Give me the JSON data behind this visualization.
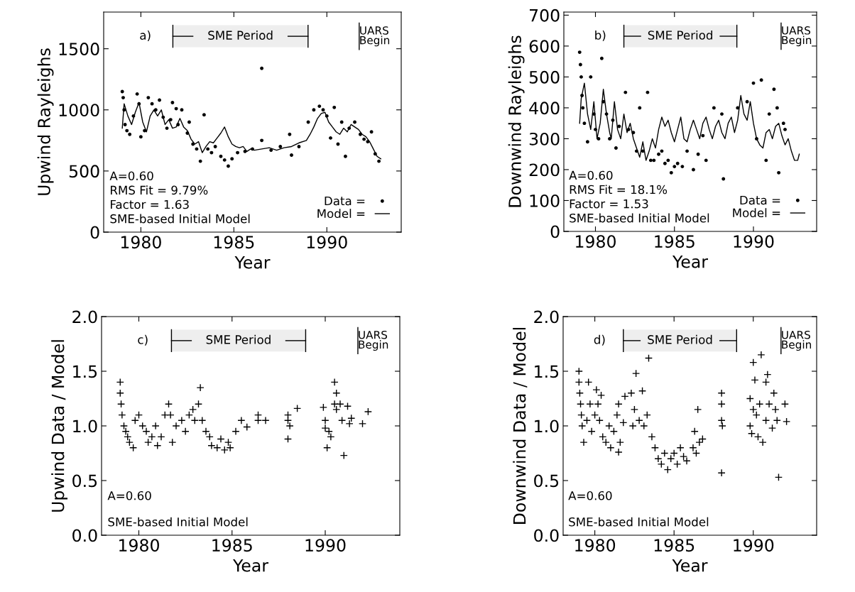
{
  "chart_data": [
    {
      "type": "line",
      "xlabel": "Year",
      "ylabel": "Upwind Rayleighs",
      "xlim": [
        1978,
        1994
      ],
      "ylim": [
        0,
        1800
      ],
      "xticks": [
        1980,
        1985,
        1990
      ],
      "yticks": [
        0,
        500,
        1000,
        1500
      ],
      "grid": false,
      "legend": "bottom right",
      "annotations": [
        "a)",
        "A=0.60",
        "RMS Fit = 9.79%",
        "Factor = 1.63",
        "SME-based Initial Model"
      ],
      "bands": [
        {
          "axis": "x",
          "from": 1981.72,
          "to": 1988.99,
          "label": "SME Period"
        }
      ],
      "ref_lines": [
        {
          "axis": "x",
          "value": 1991.74,
          "label": "UARS\nBegin"
        }
      ],
      "series": [
        {
          "name": "Data =",
          "type": "scatter",
          "marker": "circle",
          "color": "#000000",
          "x": [
            1979.0,
            1979.05,
            1979.1,
            1979.15,
            1979.25,
            1979.4,
            1979.6,
            1979.8,
            1979.9,
            1980.0,
            1980.2,
            1980.4,
            1980.6,
            1980.8,
            1981.0,
            1981.2,
            1981.4,
            1981.6,
            1981.7,
            1981.9,
            1982.0,
            1982.2,
            1982.5,
            1982.6,
            1982.8,
            1983.0,
            1983.2,
            1983.4,
            1983.6,
            1983.8,
            1984.0,
            1984.3,
            1984.5,
            1984.7,
            1984.9,
            1985.2,
            1985.6,
            1986.0,
            1986.5,
            1986.5,
            1987.0,
            1987.5,
            1988.0,
            1988.1,
            1988.5,
            1989.0,
            1989.3,
            1989.6,
            1989.8,
            1990.0,
            1990.2,
            1990.4,
            1990.6,
            1990.8,
            1991.0,
            1991.2,
            1991.5,
            1991.8,
            1992.0,
            1992.2,
            1992.4,
            1992.6,
            1992.8
          ],
          "values": [
            1150,
            1100,
            1000,
            880,
            830,
            800,
            950,
            1130,
            1050,
            780,
            830,
            1100,
            1050,
            1000,
            1080,
            940,
            850,
            920,
            1060,
            1010,
            880,
            1000,
            810,
            900,
            720,
            680,
            580,
            960,
            680,
            650,
            700,
            620,
            590,
            540,
            600,
            650,
            660,
            680,
            750,
            1340,
            670,
            700,
            800,
            630,
            700,
            900,
            1000,
            1030,
            1000,
            950,
            770,
            1020,
            720,
            900,
            620,
            850,
            900,
            800,
            760,
            740,
            820,
            640,
            580
          ]
        },
        {
          "name": "Model =",
          "type": "line",
          "line_style": "solid",
          "marker": "none",
          "color": "#000000",
          "x": [
            1979.0,
            1979.1,
            1979.3,
            1979.5,
            1979.7,
            1979.9,
            1980.1,
            1980.3,
            1980.5,
            1980.7,
            1980.9,
            1981.1,
            1981.3,
            1981.5,
            1981.7,
            1981.9,
            1982.1,
            1982.3,
            1982.5,
            1982.7,
            1982.9,
            1983.1,
            1983.3,
            1983.5,
            1983.7,
            1983.9,
            1984.1,
            1984.3,
            1984.5,
            1984.7,
            1984.9,
            1985.1,
            1985.3,
            1985.5,
            1985.7,
            1985.9,
            1986.1,
            1986.5,
            1986.9,
            1987.3,
            1987.7,
            1988.1,
            1988.5,
            1988.9,
            1989.1,
            1989.3,
            1989.5,
            1989.7,
            1989.9,
            1990.1,
            1990.3,
            1990.5,
            1990.7,
            1990.9,
            1991.1,
            1991.3,
            1991.5,
            1991.7,
            1991.9,
            1992.1,
            1992.3,
            1992.5,
            1992.7,
            1992.9
          ],
          "values": [
            850,
            1050,
            950,
            880,
            980,
            1060,
            900,
            820,
            950,
            1000,
            950,
            1000,
            880,
            920,
            850,
            860,
            930,
            860,
            830,
            760,
            720,
            740,
            650,
            700,
            740,
            730,
            770,
            810,
            860,
            780,
            720,
            700,
            690,
            700,
            660,
            680,
            670,
            680,
            690,
            670,
            690,
            700,
            730,
            750,
            800,
            860,
            930,
            970,
            980,
            900,
            860,
            820,
            800,
            850,
            820,
            880,
            860,
            840,
            800,
            780,
            740,
            680,
            620,
            600
          ]
        }
      ]
    },
    {
      "type": "line",
      "xlabel": "Year",
      "ylabel": "Downwind Rayleighs",
      "xlim": [
        1978,
        1994
      ],
      "ylim": [
        0,
        710
      ],
      "xticks": [
        1980,
        1985,
        1990
      ],
      "yticks": [
        0,
        100,
        200,
        300,
        400,
        500,
        600,
        700
      ],
      "grid": false,
      "legend": "bottom right",
      "annotations": [
        "b)",
        "A=0.60",
        "RMS Fit = 18.1%",
        "Factor = 1.53",
        "SME-based Initial Model"
      ],
      "bands": [
        {
          "axis": "x",
          "from": 1981.8,
          "to": 1988.95,
          "label": "SME Period"
        }
      ],
      "ref_lines": [
        {
          "axis": "x",
          "value": 1991.75,
          "label": "UARS\nBegin"
        }
      ],
      "series": [
        {
          "name": "Data =",
          "type": "scatter",
          "marker": "circle",
          "color": "#000000",
          "x": [
            1979.0,
            1979.05,
            1979.1,
            1979.15,
            1979.2,
            1979.3,
            1979.5,
            1979.7,
            1979.9,
            1980.0,
            1980.2,
            1980.4,
            1980.5,
            1980.7,
            1980.9,
            1981.1,
            1981.3,
            1981.5,
            1981.9,
            1982.1,
            1982.4,
            1982.6,
            1982.8,
            1983.0,
            1983.3,
            1983.5,
            1983.7,
            1984.0,
            1984.2,
            1984.4,
            1984.6,
            1984.8,
            1985.0,
            1985.2,
            1985.5,
            1985.8,
            1986.2,
            1986.5,
            1986.8,
            1987.0,
            1987.5,
            1988.0,
            1988.1,
            1989.0,
            1989.6,
            1990.0,
            1990.2,
            1990.5,
            1990.8,
            1991.0,
            1991.3,
            1991.5,
            1991.6,
            1991.9,
            1992.0
          ],
          "values": [
            580,
            540,
            500,
            440,
            400,
            350,
            290,
            500,
            380,
            330,
            300,
            560,
            420,
            380,
            300,
            360,
            270,
            340,
            450,
            330,
            320,
            260,
            400,
            260,
            450,
            230,
            230,
            250,
            260,
            220,
            230,
            190,
            210,
            220,
            210,
            260,
            200,
            250,
            310,
            230,
            400,
            380,
            170,
            400,
            420,
            480,
            300,
            490,
            230,
            380,
            460,
            400,
            190,
            350,
            330
          ]
        },
        {
          "name": "Model =",
          "type": "line",
          "line_style": "solid",
          "marker": "none",
          "color": "#000000",
          "x": [
            1979.0,
            1979.1,
            1979.3,
            1979.5,
            1979.7,
            1979.9,
            1980.1,
            1980.3,
            1980.5,
            1980.7,
            1980.9,
            1981.0,
            1981.2,
            1981.4,
            1981.6,
            1981.8,
            1982.0,
            1982.2,
            1982.4,
            1982.6,
            1982.8,
            1983.0,
            1983.2,
            1983.4,
            1983.6,
            1983.8,
            1984.0,
            1984.2,
            1984.4,
            1984.6,
            1984.8,
            1985.0,
            1985.2,
            1985.4,
            1985.6,
            1985.8,
            1986.0,
            1986.2,
            1986.4,
            1986.6,
            1986.8,
            1987.0,
            1987.2,
            1987.4,
            1987.6,
            1987.8,
            1988.0,
            1988.2,
            1988.4,
            1988.6,
            1988.8,
            1989.0,
            1989.2,
            1989.4,
            1989.6,
            1989.8,
            1990.0,
            1990.2,
            1990.4,
            1990.6,
            1990.8,
            1991.0,
            1991.2,
            1991.4,
            1991.6,
            1991.8,
            1992.0,
            1992.2,
            1992.4,
            1992.6,
            1992.8,
            1992.9
          ],
          "values": [
            350,
            430,
            480,
            380,
            330,
            420,
            300,
            350,
            460,
            380,
            320,
            300,
            420,
            330,
            300,
            380,
            320,
            350,
            300,
            270,
            240,
            290,
            230,
            260,
            300,
            270,
            330,
            370,
            340,
            360,
            320,
            290,
            330,
            370,
            300,
            290,
            330,
            360,
            330,
            300,
            350,
            370,
            330,
            300,
            340,
            360,
            320,
            300,
            350,
            370,
            320,
            360,
            440,
            380,
            360,
            420,
            350,
            300,
            280,
            270,
            320,
            330,
            300,
            340,
            350,
            310,
            280,
            300,
            260,
            230,
            230,
            250
          ]
        }
      ]
    },
    {
      "type": "scatter",
      "marker": "cross",
      "xlabel": "Year",
      "ylabel": "Upwind Data / Model",
      "xlim": [
        1978,
        1994
      ],
      "ylim": [
        0,
        2
      ],
      "xticks": [
        1980,
        1985,
        1990
      ],
      "yticks": [
        {
          "value": 0,
          "label": "0.0"
        },
        {
          "value": 0.5,
          "label": "0.5"
        },
        {
          "value": 1,
          "label": "1.0"
        },
        {
          "value": 1.5,
          "label": "1.5"
        },
        {
          "value": 2,
          "label": "2.0"
        }
      ],
      "grid": false,
      "annotations": [
        "c)",
        "A=0.60",
        "SME-based Initial Model"
      ],
      "bands": [
        {
          "axis": "x",
          "from": 1981.75,
          "to": 1988.95,
          "label": "SME Period"
        }
      ],
      "ref_lines": [
        {
          "axis": "x",
          "value": 1991.75,
          "label": "UARS\nBegin"
        }
      ],
      "series": [
        {
          "color": "#000000",
          "x": [
            1979.0,
            1979.0,
            1979.05,
            1979.1,
            1979.2,
            1979.3,
            1979.4,
            1979.5,
            1979.7,
            1979.8,
            1980.0,
            1980.2,
            1980.4,
            1980.5,
            1980.7,
            1980.9,
            1981.0,
            1981.2,
            1981.4,
            1981.6,
            1981.7,
            1981.8,
            1982.0,
            1982.3,
            1982.5,
            1982.7,
            1982.9,
            1983.0,
            1983.2,
            1983.3,
            1983.4,
            1983.6,
            1983.8,
            1983.9,
            1984.2,
            1984.4,
            1984.6,
            1984.8,
            1984.9,
            1985.2,
            1985.5,
            1985.8,
            1986.4,
            1986.4,
            1986.8,
            1988.0,
            1988.0,
            1988.0,
            1988.1,
            1988.5,
            1989.9,
            1990.0,
            1990.0,
            1990.1,
            1990.2,
            1990.3,
            1990.5,
            1990.5,
            1990.6,
            1990.6,
            1990.8,
            1990.9,
            1991.0,
            1991.2,
            1991.3,
            1991.4,
            1992.0,
            1992.3
          ],
          "values": [
            1.4,
            1.3,
            1.2,
            1.1,
            1.0,
            0.95,
            0.9,
            0.85,
            0.8,
            1.05,
            1.1,
            1.0,
            0.95,
            0.85,
            0.9,
            1.0,
            0.82,
            0.9,
            1.1,
            1.2,
            1.1,
            0.85,
            1.0,
            1.05,
            0.95,
            1.1,
            1.15,
            1.05,
            1.2,
            1.35,
            1.05,
            0.95,
            0.9,
            0.82,
            0.8,
            0.88,
            0.78,
            0.85,
            0.8,
            0.95,
            1.05,
            0.99,
            1.05,
            1.1,
            1.05,
            1.1,
            1.05,
            0.88,
            1.0,
            1.16,
            1.17,
            1.05,
            0.98,
            0.8,
            0.95,
            0.9,
            1.2,
            1.4,
            1.3,
            1.15,
            1.2,
            1.05,
            0.73,
            1.18,
            1.02,
            1.07,
            1.02,
            1.13
          ]
        }
      ]
    },
    {
      "type": "scatter",
      "marker": "cross",
      "xlabel": "Year",
      "ylabel": "Downwind Data / Model",
      "xlim": [
        1978,
        1994
      ],
      "ylim": [
        0,
        2
      ],
      "xticks": [
        1980,
        1985,
        1990
      ],
      "yticks": [
        {
          "value": 0,
          "label": "0.0"
        },
        {
          "value": 0.5,
          "label": "0.5"
        },
        {
          "value": 1,
          "label": "1.0"
        },
        {
          "value": 1.5,
          "label": "1.5"
        },
        {
          "value": 2,
          "label": "2.0"
        }
      ],
      "grid": false,
      "annotations": [
        "d)",
        "A=0.60",
        "SME-based Initial Model"
      ],
      "bands": [
        {
          "axis": "x",
          "from": 1981.8,
          "to": 1988.95,
          "label": "SME Period"
        }
      ],
      "ref_lines": [
        {
          "axis": "x",
          "value": 1991.75,
          "label": "UARS\nBegin"
        }
      ],
      "series": [
        {
          "color": "#000000",
          "x": [
            1979.0,
            1979.0,
            1979.05,
            1979.1,
            1979.15,
            1979.2,
            1979.3,
            1979.5,
            1979.6,
            1979.7,
            1979.8,
            1980.0,
            1980.1,
            1980.2,
            1980.3,
            1980.4,
            1980.5,
            1980.7,
            1980.9,
            1981.0,
            1981.2,
            1981.4,
            1981.5,
            1981.5,
            1981.6,
            1981.8,
            1981.9,
            1982.3,
            1982.4,
            1982.5,
            1982.6,
            1982.8,
            1983.0,
            1983.1,
            1983.3,
            1983.4,
            1983.6,
            1983.8,
            1984.0,
            1984.2,
            1984.4,
            1984.6,
            1984.8,
            1985.0,
            1985.2,
            1985.4,
            1985.6,
            1985.8,
            1986.2,
            1986.3,
            1986.4,
            1986.5,
            1986.6,
            1986.8,
            1988.0,
            1988.0,
            1988.0,
            1988.05,
            1988.0,
            1989.8,
            1989.8,
            1989.9,
            1990.0,
            1990.0,
            1990.1,
            1990.2,
            1990.3,
            1990.4,
            1990.5,
            1990.6,
            1990.8,
            1990.8,
            1990.9,
            1991.0,
            1991.2,
            1991.3,
            1991.4,
            1991.5,
            1991.6,
            1992.0,
            1992.1
          ],
          "values": [
            1.5,
            1.4,
            1.3,
            1.2,
            1.1,
            1.0,
            0.85,
            1.05,
            1.4,
            1.2,
            0.95,
            1.1,
            1.33,
            1.2,
            1.05,
            1.28,
            0.9,
            0.85,
            1.0,
            0.8,
            0.95,
            1.1,
            1.2,
            0.76,
            0.85,
            1.03,
            1.27,
            1.3,
            1.0,
            1.15,
            1.48,
            1.05,
            1.32,
            1.0,
            1.1,
            1.62,
            0.9,
            0.8,
            0.7,
            0.65,
            0.75,
            0.6,
            0.7,
            0.75,
            0.65,
            0.8,
            0.72,
            0.68,
            0.8,
            0.95,
            0.75,
            1.15,
            0.85,
            0.88,
            1.3,
            1.2,
            1.05,
            1.0,
            0.57,
            1.25,
            1.0,
            0.93,
            1.58,
            1.15,
            1.42,
            1.1,
            0.9,
            1.2,
            1.65,
            0.85,
            1.4,
            1.05,
            1.47,
            1.2,
            0.98,
            1.3,
            1.15,
            1.05,
            0.53,
            1.2,
            1.04
          ]
        }
      ]
    }
  ]
}
